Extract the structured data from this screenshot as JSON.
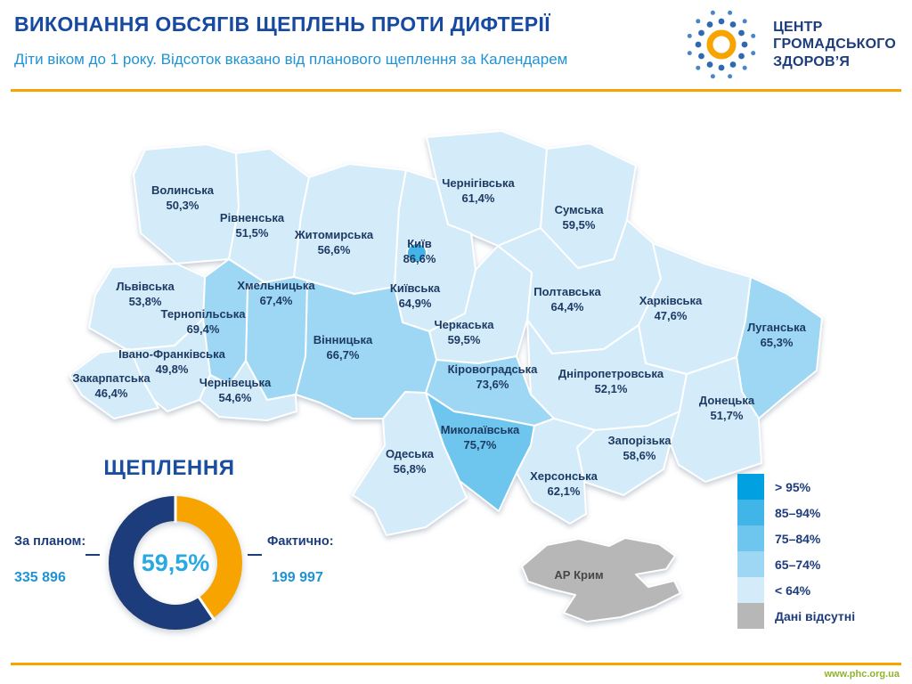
{
  "header": {
    "title": "ВИКОНАННЯ ОБСЯГІВ ЩЕПЛЕНЬ ПРОТИ ДИФТЕРІЇ",
    "subtitle": "Діти віком до 1 року. Відсоток вказано від планового щеплення за Календарем",
    "logo_lines": [
      "ЦЕНТР",
      "ГРОМАДСЬКОГО",
      "ЗДОРОВ’Я"
    ]
  },
  "palette": {
    "accent_orange": "#f7a400",
    "brand_navy": "#1d3c7c",
    "title_blue": "#1649a0",
    "light_blue_text": "#2093d5",
    "center_blue": "#29a9e2",
    "footer_green": "#90b42d"
  },
  "legend": {
    "items": [
      {
        "label": "> 95%",
        "color": "#00a0e1"
      },
      {
        "label": "85–94%",
        "color": "#41b5e8"
      },
      {
        "label": "75–84%",
        "color": "#6ec6ee"
      },
      {
        "label": "65–74%",
        "color": "#9dd7f3"
      },
      {
        "label": "< 64%",
        "color": "#d4ebf9"
      },
      {
        "label": "Дані відсутні",
        "color": "#b7b7b7"
      }
    ]
  },
  "footer": {
    "url": "www.phc.org.ua"
  },
  "chart_data": [
    {
      "type": "heatmap",
      "subtype": "choropleth map of Ukraine oblasts",
      "title": "ВИКОНАННЯ ОБСЯГІВ ЩЕПЛЕНЬ ПРОТИ ДИФТЕРІЇ",
      "unit": "% виконання планового щеплення проти дифтерії, діти до 1 року",
      "legend_position": "bottom-right",
      "bins": [
        "> 95%",
        "85–94%",
        "75–84%",
        "65–74%",
        "< 64%",
        "Дані відсутні"
      ],
      "regions": [
        {
          "name": "Волинська",
          "value_label": "50,3%",
          "value": 50.3
        },
        {
          "name": "Рівненська",
          "value_label": "51,5%",
          "value": 51.5
        },
        {
          "name": "Житомирська",
          "value_label": "56,6%",
          "value": 56.6
        },
        {
          "name": "Чернігівська",
          "value_label": "61,4%",
          "value": 61.4
        },
        {
          "name": "Сумська",
          "value_label": "59,5%",
          "value": 59.5
        },
        {
          "name": "Київ",
          "value_label": "86,6%",
          "value": 86.6
        },
        {
          "name": "Київська",
          "value_label": "64,9%",
          "value": 64.9
        },
        {
          "name": "Львівська",
          "value_label": "53,8%",
          "value": 53.8
        },
        {
          "name": "Хмельницька",
          "value_label": "67,4%",
          "value": 67.4
        },
        {
          "name": "Тернопільська",
          "value_label": "69,4%",
          "value": 69.4
        },
        {
          "name": "Полтавська",
          "value_label": "64,4%",
          "value": 64.4
        },
        {
          "name": "Харківська",
          "value_label": "47,6%",
          "value": 47.6
        },
        {
          "name": "Луганська",
          "value_label": "65,3%",
          "value": 65.3
        },
        {
          "name": "Черкаська",
          "value_label": "59,5%",
          "value": 59.5
        },
        {
          "name": "Вінницька",
          "value_label": "66,7%",
          "value": 66.7
        },
        {
          "name": "Івано-Франківська",
          "value_label": "49,8%",
          "value": 49.8
        },
        {
          "name": "Закарпатська",
          "value_label": "46,4%",
          "value": 46.4
        },
        {
          "name": "Чернівецька",
          "value_label": "54,6%",
          "value": 54.6
        },
        {
          "name": "Кіровоградська",
          "value_label": "73,6%",
          "value": 73.6
        },
        {
          "name": "Дніпропетровська",
          "value_label": "52,1%",
          "value": 52.1
        },
        {
          "name": "Донецька",
          "value_label": "51,7%",
          "value": 51.7
        },
        {
          "name": "Миколаївська",
          "value_label": "75,7%",
          "value": 75.7
        },
        {
          "name": "Запорізька",
          "value_label": "58,6%",
          "value": 58.6
        },
        {
          "name": "Одеська",
          "value_label": "56,8%",
          "value": 56.8
        },
        {
          "name": "Херсонська",
          "value_label": "62,1%",
          "value": 62.1
        },
        {
          "name": "АР Крим",
          "value_label": "",
          "value": null
        }
      ]
    },
    {
      "type": "pie",
      "subtype": "donut",
      "title": "ЩЕПЛЕННЯ",
      "center_label": "59,5%",
      "percent": 59.5,
      "colors": {
        "done": "#1d3c7c",
        "remaining": "#f7a400"
      },
      "planned_label": "За планом:",
      "planned_value": "335 896",
      "actual_label": "Фактично:",
      "actual_value": "199 997"
    }
  ]
}
